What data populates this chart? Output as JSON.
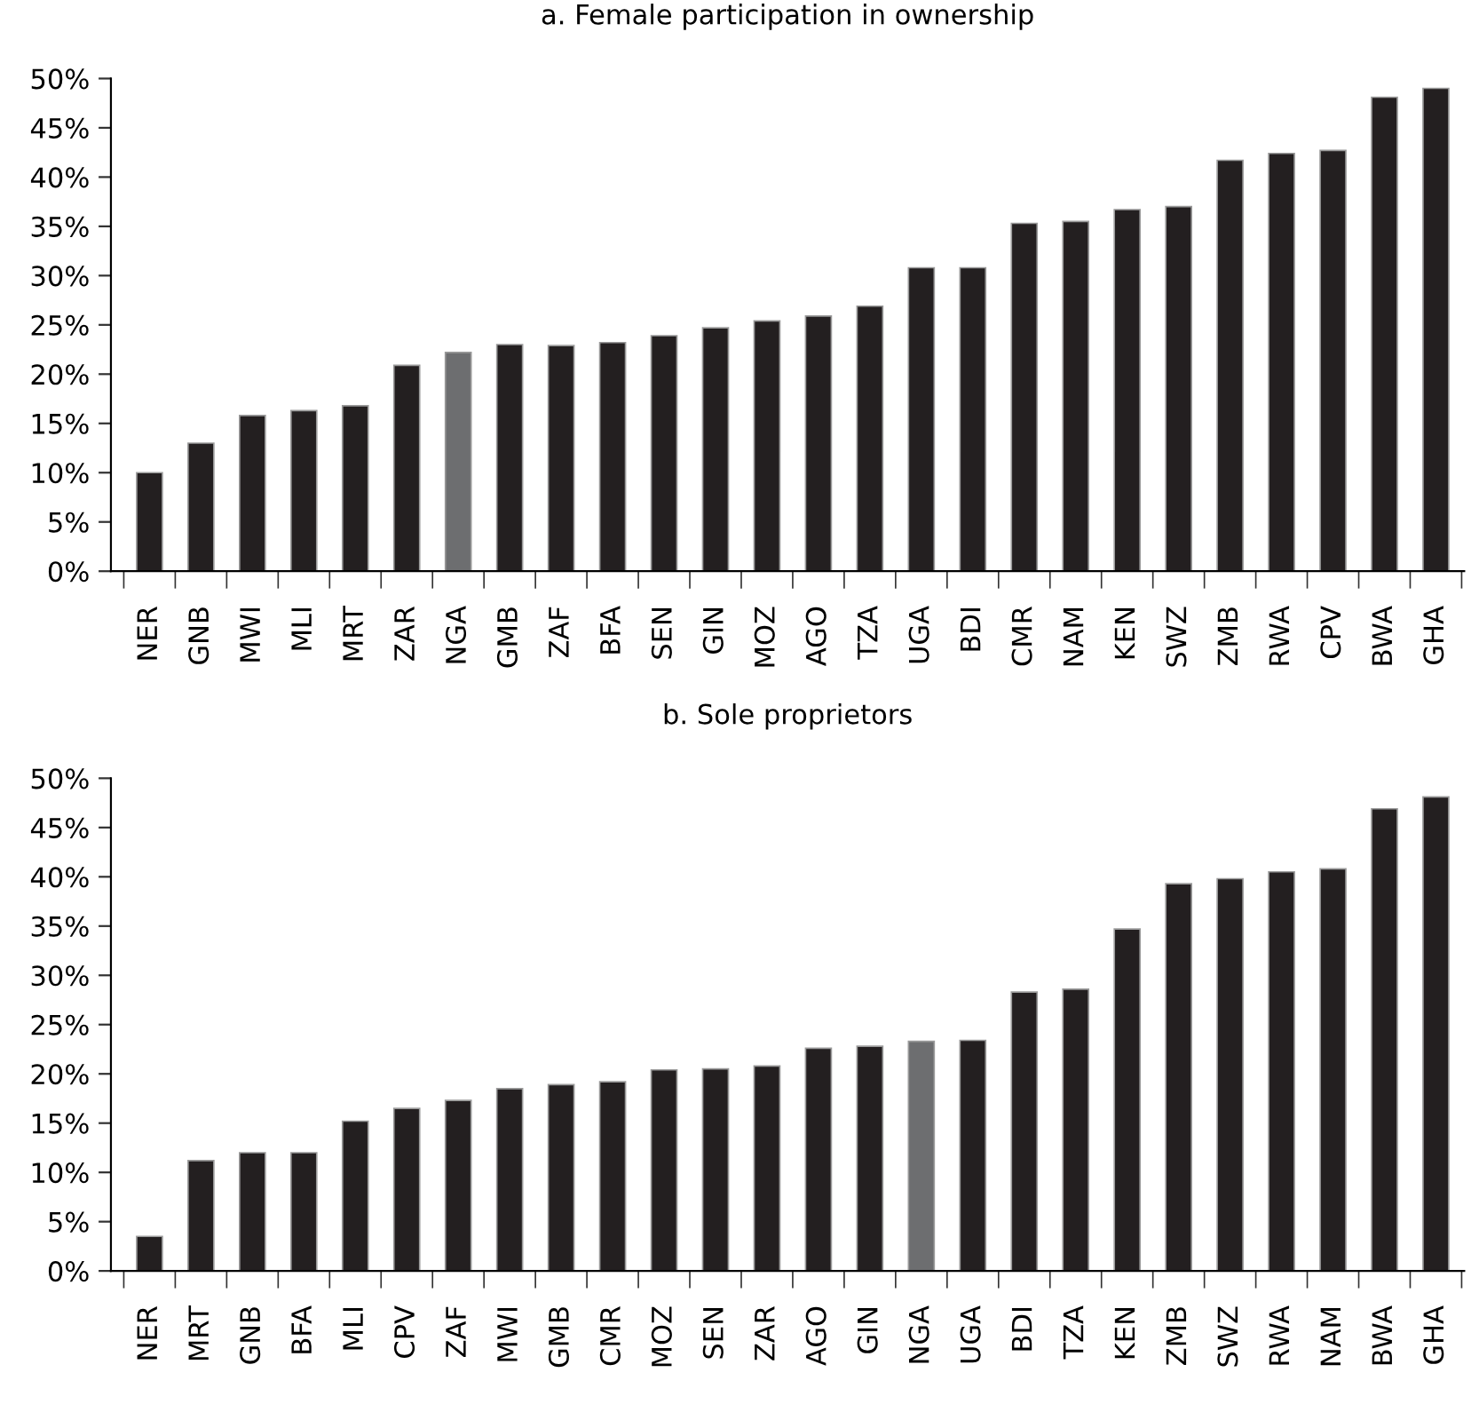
{
  "chart_data": [
    {
      "type": "bar",
      "title": "a. Female participation in ownership",
      "categories": [
        "NER",
        "GNB",
        "MWI",
        "MLI",
        "MRT",
        "ZAR",
        "NGA",
        "GMB",
        "ZAF",
        "BFA",
        "SEN",
        "GIN",
        "MOZ",
        "AGO",
        "TZA",
        "UGA",
        "BDI",
        "CMR",
        "NAM",
        "KEN",
        "SWZ",
        "ZMB",
        "RWA",
        "CPV",
        "BWA",
        "GHA"
      ],
      "values": [
        10,
        13,
        15.8,
        16.3,
        16.8,
        20.9,
        22.2,
        23,
        22.9,
        23.2,
        23.9,
        24.7,
        25.4,
        25.9,
        26.9,
        30.8,
        30.8,
        35.3,
        35.5,
        36.7,
        37,
        41.7,
        42.4,
        42.7,
        48.1,
        49
      ],
      "colors": [
        "#231f20",
        "#231f20",
        "#231f20",
        "#231f20",
        "#231f20",
        "#231f20",
        "#6d6e70",
        "#231f20",
        "#231f20",
        "#231f20",
        "#231f20",
        "#231f20",
        "#231f20",
        "#231f20",
        "#231f20",
        "#231f20",
        "#231f20",
        "#231f20",
        "#231f20",
        "#231f20",
        "#231f20",
        "#231f20",
        "#231f20",
        "#231f20",
        "#231f20",
        "#231f20"
      ],
      "ylim": [
        0,
        50
      ],
      "yticks": [
        {
          "value": 0,
          "label": "0%"
        },
        {
          "value": 5,
          "label": "5%"
        },
        {
          "value": 10,
          "label": "10%"
        },
        {
          "value": 15,
          "label": "15%"
        },
        {
          "value": 20,
          "label": "20%"
        },
        {
          "value": 25,
          "label": "25%"
        },
        {
          "value": 30,
          "label": "30%"
        },
        {
          "value": 35,
          "label": "35%"
        },
        {
          "value": 40,
          "label": "40%"
        },
        {
          "value": 45,
          "label": "45%"
        },
        {
          "value": 50,
          "label": "50%"
        }
      ]
    },
    {
      "type": "bar",
      "title": "b. Sole proprietors",
      "categories": [
        "NER",
        "MRT",
        "GNB",
        "BFA",
        "MLI",
        "CPV",
        "ZAF",
        "MWI",
        "GMB",
        "CMR",
        "MOZ",
        "SEN",
        "ZAR",
        "AGO",
        "GIN",
        "NGA",
        "UGA",
        "BDI",
        "TZA",
        "KEN",
        "ZMB",
        "SWZ",
        "RWA",
        "NAM",
        "BWA",
        "GHA"
      ],
      "values": [
        3.5,
        11.2,
        12,
        12,
        15.2,
        16.5,
        17.3,
        18.5,
        18.9,
        19.2,
        20.4,
        20.5,
        20.8,
        22.6,
        22.8,
        23.3,
        23.4,
        28.3,
        28.6,
        34.7,
        39.3,
        39.8,
        40.5,
        40.8,
        46.9,
        48.1
      ],
      "colors": [
        "#231f20",
        "#231f20",
        "#231f20",
        "#231f20",
        "#231f20",
        "#231f20",
        "#231f20",
        "#231f20",
        "#231f20",
        "#231f20",
        "#231f20",
        "#231f20",
        "#231f20",
        "#231f20",
        "#231f20",
        "#6d6e70",
        "#231f20",
        "#231f20",
        "#231f20",
        "#231f20",
        "#231f20",
        "#231f20",
        "#231f20",
        "#231f20",
        "#231f20",
        "#231f20"
      ],
      "ylim": [
        0,
        50
      ],
      "yticks": [
        {
          "value": 0,
          "label": "0%"
        },
        {
          "value": 5,
          "label": "5%"
        },
        {
          "value": 10,
          "label": "10%"
        },
        {
          "value": 15,
          "label": "15%"
        },
        {
          "value": 20,
          "label": "20%"
        },
        {
          "value": 25,
          "label": "25%"
        },
        {
          "value": 30,
          "label": "30%"
        },
        {
          "value": 35,
          "label": "35%"
        },
        {
          "value": 40,
          "label": "40%"
        },
        {
          "value": 45,
          "label": "45%"
        },
        {
          "value": 50,
          "label": "50%"
        }
      ]
    }
  ]
}
